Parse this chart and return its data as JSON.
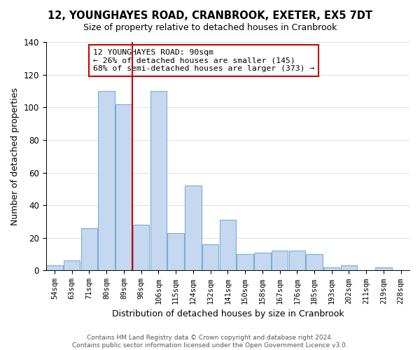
{
  "title": "12, YOUNGHAYES ROAD, CRANBROOK, EXETER, EX5 7DT",
  "subtitle": "Size of property relative to detached houses in Cranbrook",
  "xlabel": "Distribution of detached houses by size in Cranbrook",
  "ylabel": "Number of detached properties",
  "bin_labels": [
    "54sqm",
    "63sqm",
    "71sqm",
    "80sqm",
    "89sqm",
    "98sqm",
    "106sqm",
    "115sqm",
    "124sqm",
    "132sqm",
    "141sqm",
    "150sqm",
    "158sqm",
    "167sqm",
    "176sqm",
    "185sqm",
    "193sqm",
    "202sqm",
    "211sqm",
    "219sqm",
    "228sqm"
  ],
  "bar_heights": [
    3,
    6,
    26,
    110,
    102,
    28,
    110,
    23,
    52,
    16,
    31,
    10,
    11,
    12,
    12,
    10,
    2,
    3,
    0,
    2,
    0
  ],
  "bar_color": "#c5d8f0",
  "bar_edge_color": "#7aadd4",
  "vline_x": 4.5,
  "vline_color": "#cc0000",
  "ylim": [
    0,
    140
  ],
  "yticks": [
    0,
    20,
    40,
    60,
    80,
    100,
    120,
    140
  ],
  "annotation_title": "12 YOUNGHAYES ROAD: 90sqm",
  "annotation_line1": "← 26% of detached houses are smaller (145)",
  "annotation_line2": "68% of semi-detached houses are larger (373) →",
  "footer1": "Contains HM Land Registry data © Crown copyright and database right 2024.",
  "footer2": "Contains public sector information licensed under the Open Government Licence v3.0.",
  "bg_color": "#ffffff"
}
